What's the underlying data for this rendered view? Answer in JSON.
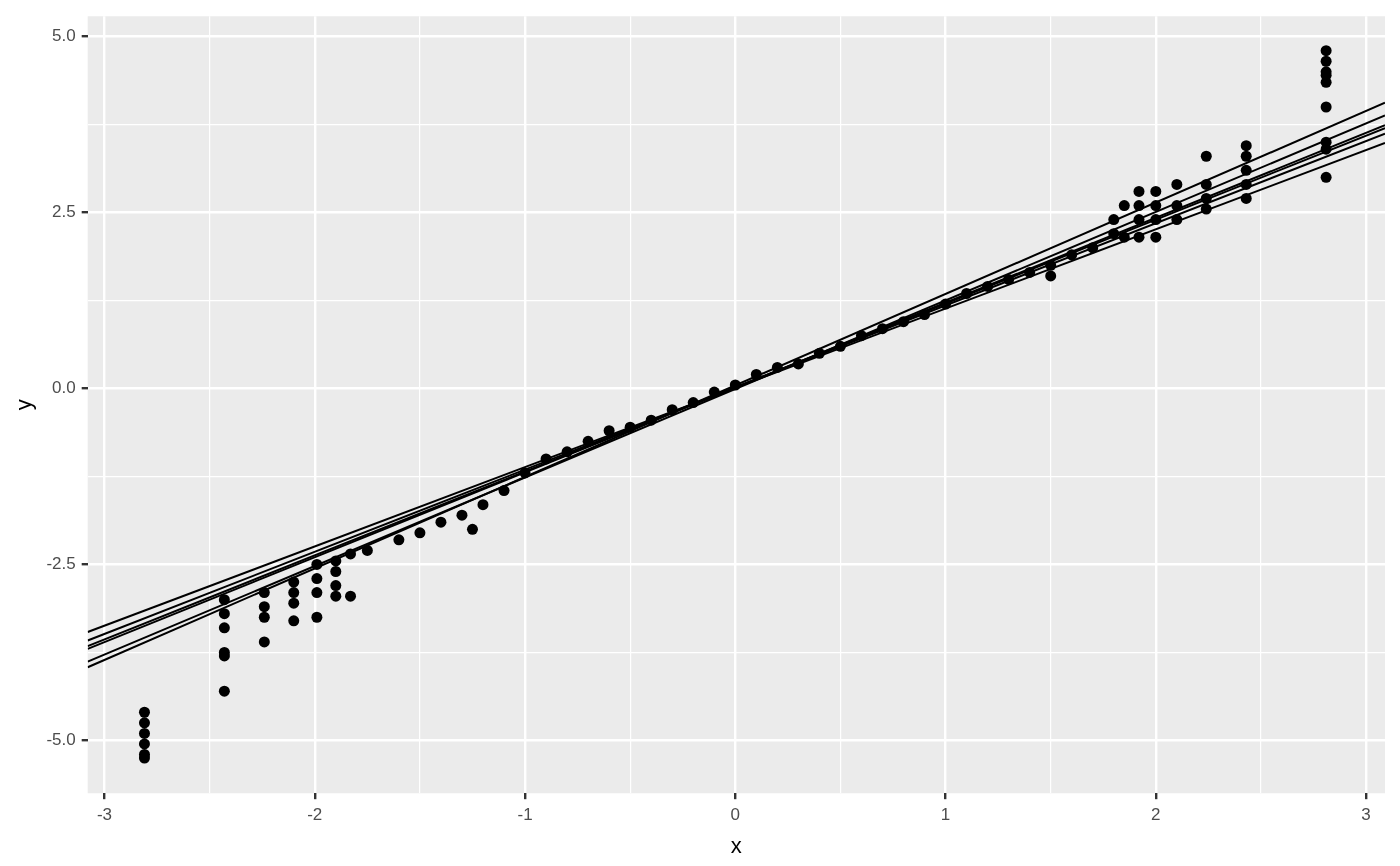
{
  "chart_data": {
    "type": "scatter",
    "xlabel": "x",
    "ylabel": "y",
    "xlim": [
      -3.08,
      3.09
    ],
    "ylim": [
      -5.75,
      5.29
    ],
    "xticks": [
      -3,
      {
        "value": -2.5,
        "label": null
      },
      -2,
      {
        "value": -1.5,
        "label": null
      },
      -1,
      {
        "value": -0.5,
        "label": null
      },
      0,
      {
        "value": 0.5,
        "label": null
      },
      1,
      {
        "value": 1.5,
        "label": null
      },
      2,
      {
        "value": 2.5,
        "label": null
      },
      3
    ],
    "yticks": [
      {
        "value": -5,
        "label": "-5.0"
      },
      {
        "value": -3.75,
        "label": null
      },
      {
        "value": -2.5,
        "label": "-2.5"
      },
      {
        "value": -1.25,
        "label": null
      },
      {
        "value": 0,
        "label": "0.0"
      },
      {
        "value": 1.25,
        "label": null
      },
      {
        "value": 2.5,
        "label": "2.5"
      },
      {
        "value": 3.75,
        "label": null
      },
      {
        "value": 5,
        "label": "5.0"
      }
    ],
    "grid": true,
    "marker": "circle",
    "series": [
      {
        "type": "scatter",
        "color": "#000000",
        "x": [
          -2.81,
          -2.81,
          -2.81,
          -2.81,
          -2.81,
          -2.81,
          -2.43,
          -2.43,
          -2.43,
          -2.43,
          -2.43,
          -2.43,
          -2.24,
          -2.24,
          -2.24,
          -2.24,
          -2.1,
          -2.1,
          -2.1,
          -2.1,
          -1.99,
          -1.99,
          -1.99,
          -1.99,
          -1.9,
          -1.9,
          -1.9,
          -1.9,
          -1.83,
          -1.83,
          -1.75,
          -1.6,
          -1.5,
          -1.4,
          -1.3,
          -1.25,
          -1.2,
          -1.1,
          -1.0,
          -0.9,
          -0.8,
          -0.7,
          -0.6,
          -0.5,
          -0.4,
          -0.3,
          -0.2,
          -0.1,
          0,
          0.1,
          0.2,
          0.3,
          0.4,
          0.5,
          0.6,
          0.7,
          0.8,
          0.9,
          1.0,
          1.1,
          1.2,
          1.3,
          1.4,
          1.5,
          1.5,
          1.6,
          1.7,
          1.8,
          1.8,
          1.85,
          1.85,
          1.92,
          1.92,
          1.92,
          1.92,
          2.0,
          2.0,
          2.0,
          2.0,
          2.1,
          2.1,
          2.1,
          2.24,
          2.24,
          2.24,
          2.24,
          2.43,
          2.43,
          2.43,
          2.43,
          2.43,
          2.81,
          2.81,
          2.81,
          2.81,
          2.81,
          2.81,
          2.81,
          2.81,
          2.81
        ],
        "values": [
          -4.6,
          -4.75,
          -4.9,
          -5.05,
          -5.2,
          -5.25,
          -3.0,
          -3.2,
          -3.4,
          -3.75,
          -3.8,
          -4.3,
          -2.9,
          -3.1,
          -3.25,
          -3.6,
          -2.75,
          -2.9,
          -3.05,
          -3.3,
          -2.5,
          -2.7,
          -2.9,
          -3.25,
          -2.45,
          -2.6,
          -2.8,
          -2.95,
          -2.35,
          -2.95,
          -2.3,
          -2.15,
          -2.05,
          -1.9,
          -1.8,
          -2.0,
          -1.65,
          -1.45,
          -1.2,
          -1.0,
          -0.9,
          -0.75,
          -0.6,
          -0.55,
          -0.45,
          -0.3,
          -0.2,
          -0.05,
          0.05,
          0.2,
          0.3,
          0.35,
          0.5,
          0.6,
          0.75,
          0.85,
          0.95,
          1.05,
          1.2,
          1.35,
          1.45,
          1.55,
          1.65,
          1.75,
          1.6,
          1.9,
          2.0,
          2.2,
          2.4,
          2.15,
          2.6,
          2.15,
          2.4,
          2.6,
          2.8,
          2.15,
          2.4,
          2.6,
          2.8,
          2.4,
          2.6,
          2.9,
          2.55,
          2.7,
          2.9,
          3.3,
          2.7,
          2.9,
          3.1,
          3.3,
          3.45,
          3.0,
          3.4,
          3.5,
          4.0,
          4.35,
          4.45,
          4.5,
          4.65,
          4.8
        ]
      },
      {
        "type": "line",
        "color": "#000000",
        "x": [
          -3.08,
          3.09
        ],
        "values": [
          -3.46,
          3.49
        ],
        "marker": "none"
      },
      {
        "type": "line",
        "color": "#000000",
        "x": [
          -3.08,
          3.09
        ],
        "values": [
          -3.58,
          3.62
        ],
        "marker": "none"
      },
      {
        "type": "line",
        "color": "#000000",
        "x": [
          -3.08,
          3.09
        ],
        "values": [
          -3.66,
          3.7
        ],
        "marker": "none"
      },
      {
        "type": "line",
        "color": "#000000",
        "x": [
          -3.08,
          3.09
        ],
        "values": [
          -3.7,
          3.74
        ],
        "marker": "none"
      },
      {
        "type": "line",
        "color": "#000000",
        "x": [
          -3.08,
          3.09
        ],
        "values": [
          -3.88,
          3.88
        ],
        "marker": "none"
      },
      {
        "type": "line",
        "color": "#000000",
        "x": [
          -3.08,
          3.09
        ],
        "values": [
          -3.96,
          4.06
        ],
        "marker": "none"
      }
    ]
  }
}
